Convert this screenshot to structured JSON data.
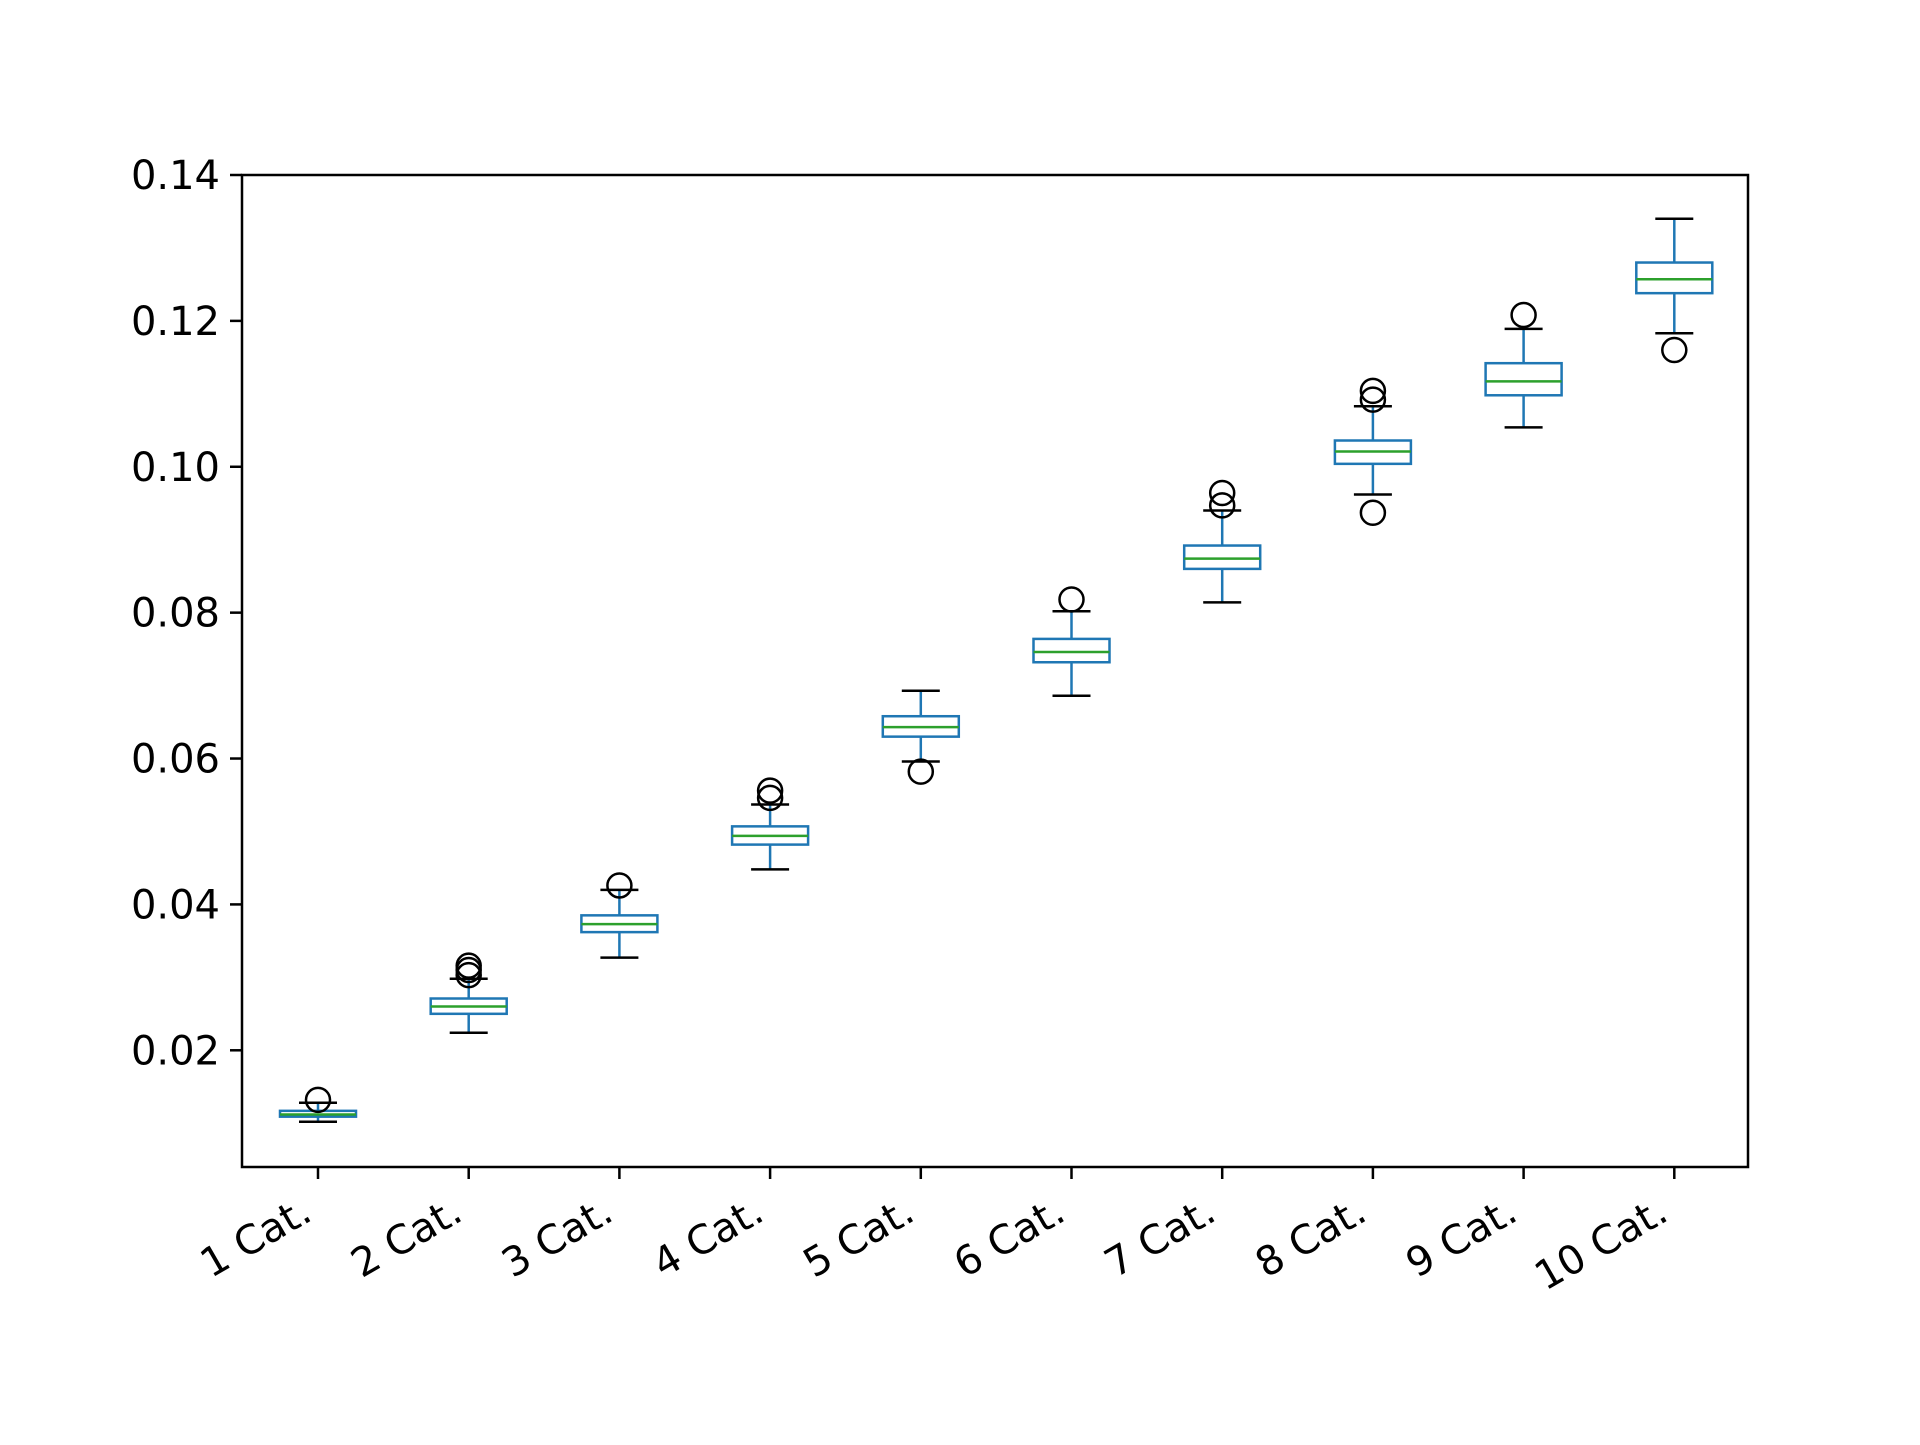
{
  "chart_data": {
    "type": "box",
    "title": "",
    "xlabel": "",
    "ylabel": "",
    "ylim": [
      0.004,
      0.14
    ],
    "yticks": [
      "0.02",
      "0.04",
      "0.06",
      "0.08",
      "0.10",
      "0.12",
      "0.14"
    ],
    "ytick_values": [
      0.02,
      0.04,
      0.06,
      0.08,
      0.1,
      0.12,
      0.14
    ],
    "categories": [
      "1 Cat.",
      "2 Cat.",
      "3 Cat.",
      "4 Cat.",
      "5 Cat.",
      "6 Cat.",
      "7 Cat.",
      "8 Cat.",
      "9 Cat.",
      "10 Cat."
    ],
    "boxes": [
      {
        "whisker_low": 0.0102,
        "q1": 0.0109,
        "median": 0.0112,
        "q3": 0.0117,
        "whisker_high": 0.0128,
        "outliers": [
          0.0132
        ]
      },
      {
        "whisker_low": 0.0224,
        "q1": 0.025,
        "median": 0.026,
        "q3": 0.0271,
        "whisker_high": 0.0298,
        "outliers": [
          0.0303,
          0.031,
          0.0316
        ]
      },
      {
        "whisker_low": 0.0327,
        "q1": 0.0362,
        "median": 0.0373,
        "q3": 0.0385,
        "whisker_high": 0.042,
        "outliers": [
          0.0426
        ]
      },
      {
        "whisker_low": 0.0448,
        "q1": 0.0482,
        "median": 0.0494,
        "q3": 0.0507,
        "whisker_high": 0.0537,
        "outliers": [
          0.0546,
          0.0556
        ]
      },
      {
        "whisker_low": 0.0596,
        "q1": 0.063,
        "median": 0.0643,
        "q3": 0.0658,
        "whisker_high": 0.0693,
        "outliers": [
          0.0582
        ]
      },
      {
        "whisker_low": 0.0686,
        "q1": 0.0732,
        "median": 0.0746,
        "q3": 0.0764,
        "whisker_high": 0.0802,
        "outliers": [
          0.0818
        ]
      },
      {
        "whisker_low": 0.0814,
        "q1": 0.086,
        "median": 0.0874,
        "q3": 0.0892,
        "whisker_high": 0.094,
        "outliers": [
          0.0947,
          0.0964
        ]
      },
      {
        "whisker_low": 0.0962,
        "q1": 0.1004,
        "median": 0.1021,
        "q3": 0.1036,
        "whisker_high": 0.1083,
        "outliers": [
          0.0937,
          0.1092,
          0.1104
        ]
      },
      {
        "whisker_low": 0.1054,
        "q1": 0.1098,
        "median": 0.1117,
        "q3": 0.1142,
        "whisker_high": 0.1189,
        "outliers": [
          0.1208
        ]
      },
      {
        "whisker_low": 0.1183,
        "q1": 0.1238,
        "median": 0.1257,
        "q3": 0.128,
        "whisker_high": 0.134,
        "outliers": [
          0.116
        ]
      }
    ],
    "colors": {
      "box": "#1f77b4",
      "median": "#2ca02c",
      "caps": "#000000",
      "outlier": "#000000",
      "axes": "#000000"
    },
    "grid": false,
    "legend": "none"
  }
}
